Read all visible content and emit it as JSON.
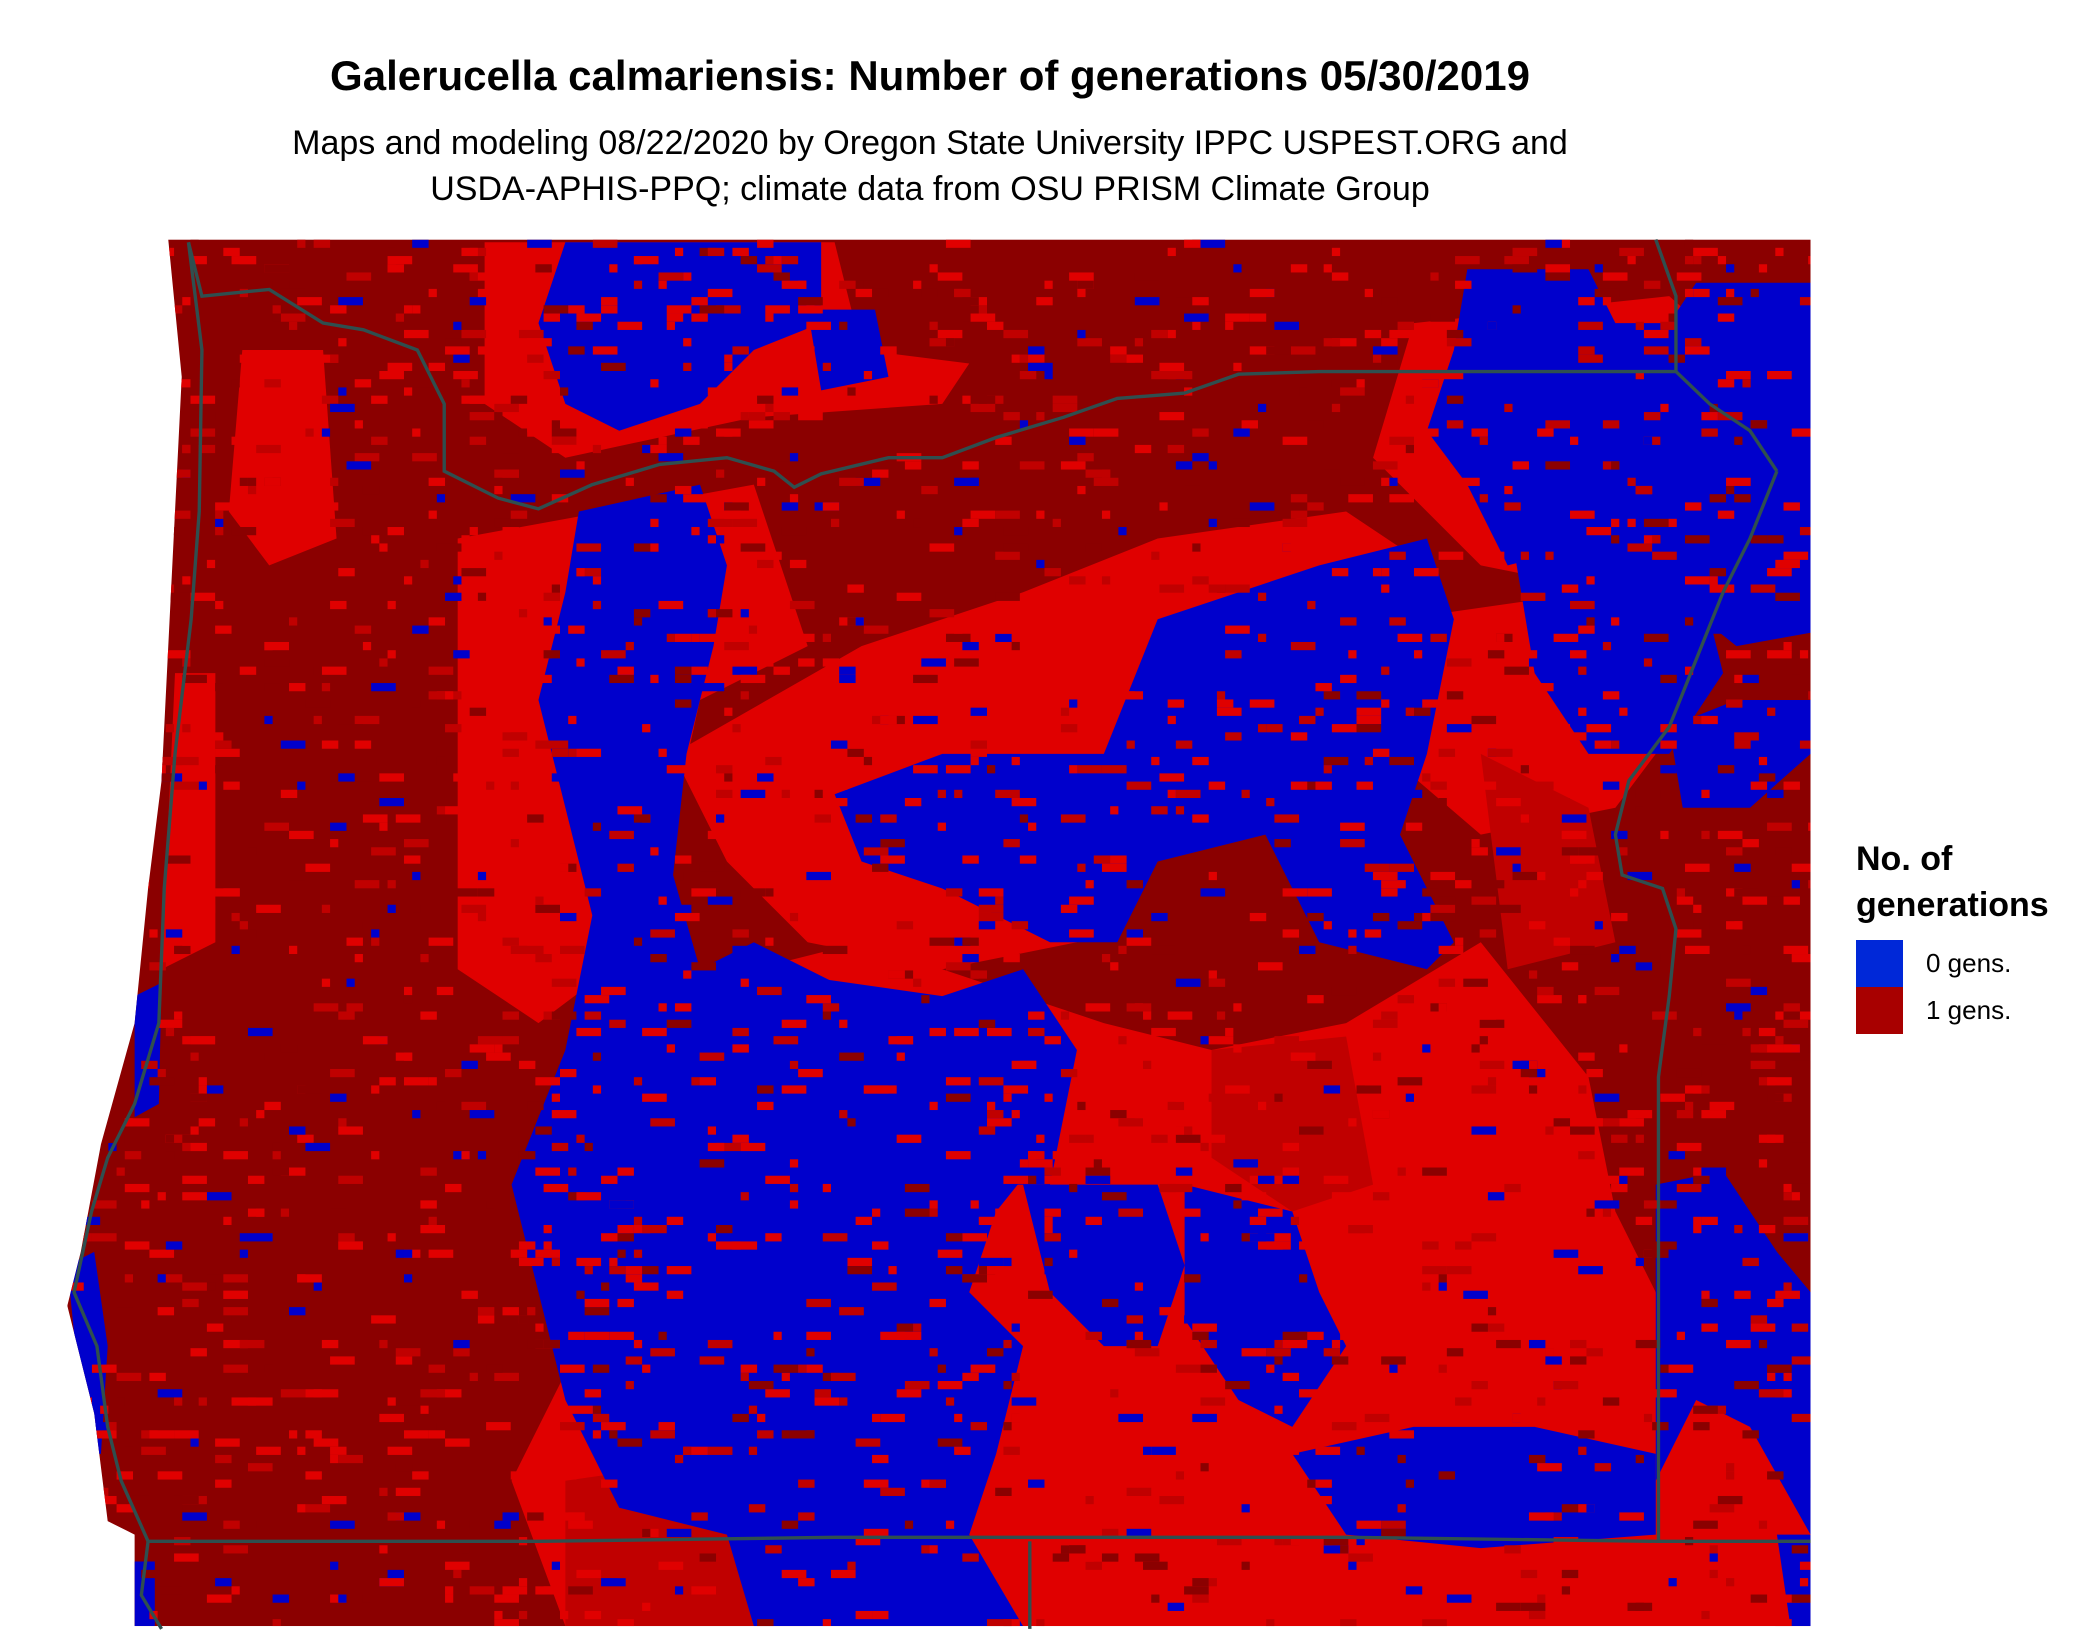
{
  "title": "Galerucella calmariensis: Number of generations 05/30/2019",
  "subtitle_line1": "Maps and modeling 08/22/2020 by Oregon State University IPPC USPEST.ORG and",
  "subtitle_line2": "USDA-APHIS-PPQ; climate data from OSU PRISM Climate Group",
  "legend": {
    "title_line1": "No. of",
    "title_line2": "generations",
    "items": [
      {
        "label": "0 gens.",
        "color": "#0028d8"
      },
      {
        "label": "1 gens.",
        "color": "#a80000"
      }
    ]
  },
  "map_colors": {
    "zero_gens": "#0000cc",
    "one_gen_dark": "#8b0000",
    "one_gen_bright": "#e00000",
    "one_gen_mid": "#c00000",
    "boundary": "#2f4f4f"
  }
}
